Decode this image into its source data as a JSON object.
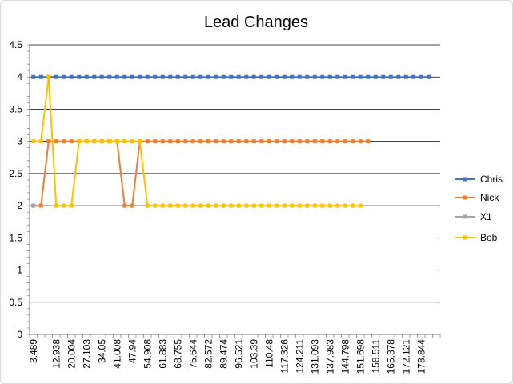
{
  "chart_data": {
    "type": "line",
    "title": "Lead Changes",
    "xlabel": "",
    "ylabel": "",
    "ylim": [
      0,
      4.5
    ],
    "y_ticks": [
      "0",
      "0.5",
      "1",
      "1.5",
      "2",
      "2.5",
      "3",
      "3.5",
      "4",
      "4.5"
    ],
    "x_tick_labels": [
      "3.489",
      "12.938",
      "20.004",
      "27.103",
      "34.05",
      "41.008",
      "47.94",
      "54.908",
      "61.883",
      "68.755",
      "75.644",
      "82.572",
      "89.474",
      "96.521",
      "103.39",
      "110.48",
      "117.326",
      "124.211",
      "131.093",
      "137.983",
      "144.798",
      "151.698",
      "158.511",
      "165.378",
      "172.121",
      "178.844"
    ],
    "grid": "horizontal",
    "legend_position": "right",
    "series": [
      {
        "name": "Chris",
        "color": "#4472C4",
        "values": [
          4,
          4,
          4,
          4,
          4,
          4,
          4,
          4,
          4,
          4,
          4,
          4,
          4,
          4,
          4,
          4,
          4,
          4,
          4,
          4,
          4,
          4,
          4,
          4,
          4,
          4,
          4,
          4,
          4,
          4,
          4,
          4,
          4,
          4,
          4,
          4,
          4,
          4,
          4,
          4,
          4,
          4,
          4,
          4,
          4,
          4,
          4,
          4,
          4,
          4,
          4,
          4,
          4
        ]
      },
      {
        "name": "Nick",
        "color": "#ED7D31",
        "values": [
          2,
          2,
          3,
          3,
          3,
          3,
          3,
          3,
          3,
          3,
          3,
          3,
          2,
          2,
          3,
          3,
          3,
          3,
          3,
          3,
          3,
          3,
          3,
          3,
          3,
          3,
          3,
          3,
          3,
          3,
          3,
          3,
          3,
          3,
          3,
          3,
          3,
          3,
          3,
          3,
          3,
          3,
          3,
          3,
          3
        ]
      },
      {
        "name": "X1",
        "color": "#A5A5A5",
        "values": [
          2
        ]
      },
      {
        "name": "Bob",
        "color": "#FFC000",
        "values": [
          3,
          3,
          4,
          2,
          2,
          2,
          3,
          3,
          3,
          3,
          3,
          3,
          3,
          3,
          3,
          2,
          2,
          2,
          2,
          2,
          2,
          2,
          2,
          2,
          2,
          2,
          2,
          2,
          2,
          2,
          2,
          2,
          2,
          2,
          2,
          2,
          2,
          2,
          2,
          2,
          2,
          2,
          2,
          2
        ]
      }
    ]
  }
}
